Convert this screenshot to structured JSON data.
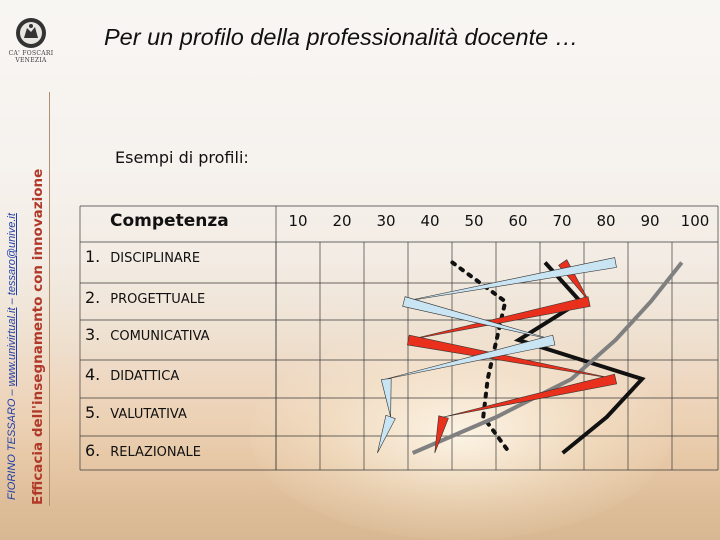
{
  "header": {
    "title": "Per un profilo della professionalità docente …",
    "logo_line1": "CA' FOSCARI",
    "logo_line2": "VENEZIA"
  },
  "sidebar": {
    "author_prefix": "FIORINO TESSARO – ",
    "author_link1": "www.univirtual.it",
    "author_sep": " – ",
    "author_link2": "tessaro@unive.it",
    "course_title": "Efficacia dell'insegnamento con innovazione"
  },
  "main": {
    "subtitle": "Esempi di profili:",
    "column_header": "Competenza",
    "scale": [
      "10",
      "20",
      "30",
      "40",
      "50",
      "60",
      "70",
      "80",
      "90",
      "100"
    ],
    "competencies": [
      {
        "num": "1.",
        "name": "DISCIPLINARE"
      },
      {
        "num": "2.",
        "name": "PROGETTUALE"
      },
      {
        "num": "3.",
        "name": "COMUNICATIVA"
      },
      {
        "num": "4.",
        "name": "DIDATTICA"
      },
      {
        "num": "5.",
        "name": "VALUTATIVA"
      },
      {
        "num": "6.",
        "name": "RELAZIONALE"
      }
    ]
  },
  "colors": {
    "title_red": "#b0392a",
    "author_blue": "#1f3fa8",
    "profile_black": "#111111",
    "profile_gray": "#808080",
    "profile_red": "#e8301c",
    "profile_lightblue": "#c9e4f2"
  },
  "profiles": [
    {
      "id": "black-dotted",
      "style": "dotted",
      "color": "#111111",
      "values": [
        45,
        57,
        55,
        53,
        52,
        58
      ]
    },
    {
      "id": "black-solid",
      "style": "thick",
      "color": "#111111",
      "values": [
        66,
        74,
        60,
        88,
        80,
        70
      ]
    },
    {
      "id": "gray-solid",
      "style": "thick",
      "color": "#808080",
      "values": [
        97,
        90,
        82,
        72,
        55,
        36
      ]
    },
    {
      "id": "red-arrow",
      "style": "arrow",
      "color": "#e8301c",
      "values": [
        70,
        76,
        35,
        82,
        43,
        41
      ]
    },
    {
      "id": "lightblue-arrow",
      "style": "arrow",
      "color": "#c9e4f2",
      "values": [
        82,
        34,
        68,
        30,
        31,
        28
      ]
    }
  ]
}
